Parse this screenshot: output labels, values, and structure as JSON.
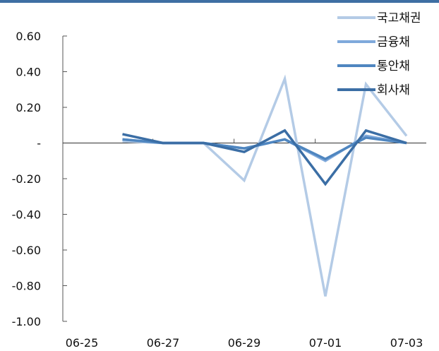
{
  "chart_data": {
    "type": "line",
    "title": "",
    "xlabel": "",
    "ylabel": "",
    "x": [
      "06-26",
      "06-27",
      "06-28",
      "06-29",
      "06-30",
      "07-01",
      "07-02",
      "07-03"
    ],
    "x_tick_labels": [
      "06-25",
      "06-27",
      "06-29",
      "07-01",
      "07-03"
    ],
    "y_tick_labels": [
      "0.60",
      "0.40",
      "0.20",
      "-",
      "-0.20",
      "-0.40",
      "-0.60",
      "-0.80",
      "-1.00"
    ],
    "ylim": [
      -1.0,
      0.6
    ],
    "grid": false,
    "legend_position": "top-right",
    "series": [
      {
        "name": "국고채권",
        "color": "#b4cbe6",
        "values": [
          0.01,
          0.0,
          0.0,
          -0.21,
          0.36,
          -0.86,
          0.33,
          0.04
        ]
      },
      {
        "name": "금융채",
        "color": "#7fa9db",
        "values": [
          0.02,
          0.0,
          0.0,
          -0.03,
          0.02,
          -0.1,
          0.04,
          0.0
        ]
      },
      {
        "name": "통안채",
        "color": "#4f86c0",
        "values": [
          0.02,
          0.0,
          0.0,
          -0.03,
          0.02,
          -0.09,
          0.03,
          0.0
        ]
      },
      {
        "name": "회사채",
        "color": "#3b6ea5",
        "values": [
          0.05,
          0.0,
          0.0,
          -0.05,
          0.07,
          -0.23,
          0.07,
          0.0
        ]
      }
    ]
  }
}
